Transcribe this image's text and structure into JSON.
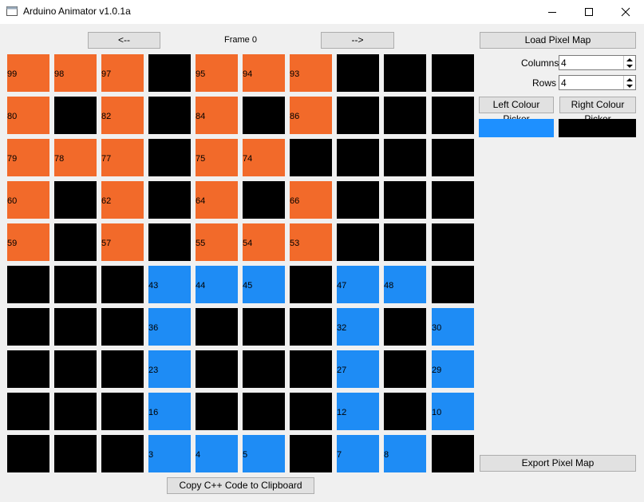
{
  "window": {
    "title": "Arduino Animator v1.0.1a",
    "titlebar_bg": "#ffffff"
  },
  "toolbar": {
    "prev_label": "<--",
    "next_label": "-->",
    "frame_label": "Frame 0",
    "copy_label": "Copy C++ Code to Clipboard"
  },
  "sidebar": {
    "load_label": "Load Pixel Map",
    "columns_label": "Columns",
    "columns_value": "4",
    "rows_label": "Rows",
    "rows_value": "4",
    "left_picker_label": "Left Colour Picker",
    "right_picker_label": "Right Colour Picker",
    "left_colour": "#1e90ff",
    "right_colour": "#000000",
    "export_label": "Export Pixel Map"
  },
  "colors": {
    "O": "#f26a2a",
    "B": "#000000",
    "U": "#1e8cf5"
  },
  "grid": {
    "rows": [
      [
        [
          "O",
          "99"
        ],
        [
          "O",
          "98"
        ],
        [
          "O",
          "97"
        ],
        [
          "B",
          ""
        ],
        [
          "O",
          "95"
        ],
        [
          "O",
          "94"
        ],
        [
          "O",
          "93"
        ],
        [
          "B",
          ""
        ],
        [
          "B",
          ""
        ],
        [
          "B",
          ""
        ]
      ],
      [
        [
          "O",
          "80"
        ],
        [
          "B",
          ""
        ],
        [
          "O",
          "82"
        ],
        [
          "B",
          ""
        ],
        [
          "O",
          "84"
        ],
        [
          "B",
          ""
        ],
        [
          "O",
          "86"
        ],
        [
          "B",
          ""
        ],
        [
          "B",
          ""
        ],
        [
          "B",
          ""
        ]
      ],
      [
        [
          "O",
          "79"
        ],
        [
          "O",
          "78"
        ],
        [
          "O",
          "77"
        ],
        [
          "B",
          ""
        ],
        [
          "O",
          "75"
        ],
        [
          "O",
          "74"
        ],
        [
          "B",
          ""
        ],
        [
          "B",
          ""
        ],
        [
          "B",
          ""
        ],
        [
          "B",
          ""
        ]
      ],
      [
        [
          "O",
          "60"
        ],
        [
          "B",
          ""
        ],
        [
          "O",
          "62"
        ],
        [
          "B",
          ""
        ],
        [
          "O",
          "64"
        ],
        [
          "B",
          ""
        ],
        [
          "O",
          "66"
        ],
        [
          "B",
          ""
        ],
        [
          "B",
          ""
        ],
        [
          "B",
          ""
        ]
      ],
      [
        [
          "O",
          "59"
        ],
        [
          "B",
          ""
        ],
        [
          "O",
          "57"
        ],
        [
          "B",
          ""
        ],
        [
          "O",
          "55"
        ],
        [
          "O",
          "54"
        ],
        [
          "O",
          "53"
        ],
        [
          "B",
          ""
        ],
        [
          "B",
          ""
        ],
        [
          "B",
          ""
        ]
      ],
      [
        [
          "B",
          ""
        ],
        [
          "B",
          ""
        ],
        [
          "B",
          ""
        ],
        [
          "U",
          "43"
        ],
        [
          "U",
          "44"
        ],
        [
          "U",
          "45"
        ],
        [
          "B",
          ""
        ],
        [
          "U",
          "47"
        ],
        [
          "U",
          "48"
        ],
        [
          "B",
          ""
        ]
      ],
      [
        [
          "B",
          ""
        ],
        [
          "B",
          ""
        ],
        [
          "B",
          ""
        ],
        [
          "U",
          "36"
        ],
        [
          "B",
          ""
        ],
        [
          "B",
          ""
        ],
        [
          "B",
          ""
        ],
        [
          "U",
          "32"
        ],
        [
          "B",
          ""
        ],
        [
          "U",
          "30"
        ]
      ],
      [
        [
          "B",
          ""
        ],
        [
          "B",
          ""
        ],
        [
          "B",
          ""
        ],
        [
          "U",
          "23"
        ],
        [
          "B",
          ""
        ],
        [
          "B",
          ""
        ],
        [
          "B",
          ""
        ],
        [
          "U",
          "27"
        ],
        [
          "B",
          ""
        ],
        [
          "U",
          "29"
        ]
      ],
      [
        [
          "B",
          ""
        ],
        [
          "B",
          ""
        ],
        [
          "B",
          ""
        ],
        [
          "U",
          "16"
        ],
        [
          "B",
          ""
        ],
        [
          "B",
          ""
        ],
        [
          "B",
          ""
        ],
        [
          "U",
          "12"
        ],
        [
          "B",
          ""
        ],
        [
          "U",
          "10"
        ]
      ],
      [
        [
          "B",
          ""
        ],
        [
          "B",
          ""
        ],
        [
          "B",
          ""
        ],
        [
          "U",
          "3"
        ],
        [
          "U",
          "4"
        ],
        [
          "U",
          "5"
        ],
        [
          "B",
          ""
        ],
        [
          "U",
          "7"
        ],
        [
          "U",
          "8"
        ],
        [
          "B",
          ""
        ]
      ]
    ]
  }
}
